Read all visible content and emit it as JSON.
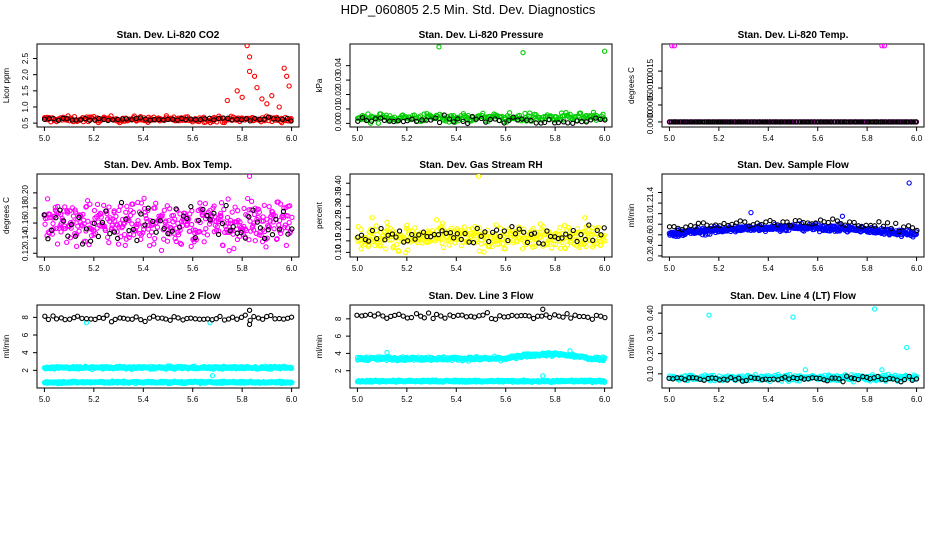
{
  "figure_title": "HDP_060805  2.5 Min. Std. Dev. Diagnostics",
  "chart_data": [
    {
      "id": "co2",
      "type": "scatter",
      "title": "Stan. Dev. Li-820 CO2",
      "ylabel": "Licor ppm",
      "xlim": [
        4.97,
        6.03
      ],
      "ylim": [
        0.38,
        2.95
      ],
      "xticks": [
        "5.0",
        "5.2",
        "5.4",
        "5.6",
        "5.8",
        "6.0"
      ],
      "yticks": [
        "0.5",
        "1.0",
        "1.5",
        "2.0",
        "2.5"
      ],
      "series": [
        {
          "name": "sd_fine",
          "color": "#ff0000",
          "base": 0.62,
          "noise": 0.09,
          "n": 240,
          "events": [
            [
              5.82,
              2.9
            ],
            [
              5.83,
              2.55
            ],
            [
              5.83,
              2.1
            ],
            [
              5.85,
              1.95
            ],
            [
              5.86,
              1.6
            ],
            [
              5.78,
              1.5
            ],
            [
              5.74,
              1.2
            ],
            [
              5.92,
              1.35
            ],
            [
              5.97,
              2.2
            ],
            [
              5.98,
              1.95
            ],
            [
              5.99,
              1.65
            ],
            [
              5.9,
              1.1
            ],
            [
              5.88,
              1.25
            ],
            [
              5.95,
              1.0
            ],
            [
              5.8,
              1.3
            ]
          ]
        },
        {
          "name": "sd_coarse",
          "color": "#000000",
          "base": 0.62,
          "noise": 0.05,
          "n": 55,
          "events": []
        }
      ]
    },
    {
      "id": "pressure",
      "type": "scatter",
      "title": "Stan. Dev. Li-820 Pressure",
      "ylabel": "kPa",
      "xlim": [
        4.97,
        6.03
      ],
      "ylim": [
        -0.0025,
        0.055
      ],
      "xticks": [
        "5.0",
        "5.2",
        "5.4",
        "5.6",
        "5.8",
        "6.0"
      ],
      "yticks": [
        "0.00",
        "0.01",
        "0.02",
        "0.03",
        "0.04"
      ],
      "series": [
        {
          "name": "sd_fine",
          "color": "#00cc00",
          "base": 0.004,
          "noise": 0.003,
          "n": 230,
          "events": [
            [
              5.33,
              0.053
            ],
            [
              5.67,
              0.049
            ],
            [
              6.0,
              0.05
            ]
          ]
        },
        {
          "name": "sd_coarse",
          "color": "#000000",
          "base": 0.002,
          "noise": 0.003,
          "n": 55,
          "events": []
        }
      ]
    },
    {
      "id": "temp",
      "type": "scatter",
      "title": "Stan. Dev. Li-820 Temp.",
      "ylabel": "degrees C",
      "xlim": [
        4.97,
        6.03
      ],
      "ylim": [
        -0.00015,
        0.0023
      ],
      "xticks": [
        "5.0",
        "5.2",
        "5.4",
        "5.6",
        "5.8",
        "6.0"
      ],
      "yticks": [
        "0.0000",
        "0.0005",
        "0.0010",
        "0.0015"
      ],
      "series": [
        {
          "name": "sd_fine",
          "color": "#ff00ff",
          "base": 0.0,
          "noise": 0.0,
          "n": 150,
          "events": [
            [
              5.01,
              0.00225
            ],
            [
              5.02,
              0.00225
            ],
            [
              5.86,
              0.00225
            ],
            [
              5.87,
              0.00225
            ]
          ]
        },
        {
          "name": "sd_coarse",
          "color": "#000000",
          "base": 0.0,
          "noise": 0.0,
          "n": 150,
          "events": []
        }
      ]
    },
    {
      "id": "ambbox",
      "type": "scatter",
      "title": "Stan. Dev. Amb. Box Temp.",
      "ylabel": "degrees C",
      "xlim": [
        4.97,
        6.03
      ],
      "ylim": [
        0.115,
        0.225
      ],
      "xticks": [
        "5.0",
        "5.2",
        "5.4",
        "5.6",
        "5.8",
        "6.0"
      ],
      "yticks": [
        "0.12",
        "0.14",
        "0.16",
        "0.18",
        "0.20"
      ],
      "series": [
        {
          "name": "sd_fine",
          "color": "#ff00ff",
          "base": 0.16,
          "noise": 0.028,
          "n": 420,
          "events": [
            [
              5.83,
              0.222
            ]
          ]
        },
        {
          "name": "sd_coarse",
          "color": "#000000",
          "base": 0.162,
          "noise": 0.025,
          "n": 65,
          "events": []
        }
      ]
    },
    {
      "id": "rh",
      "type": "scatter",
      "title": "Stan. Dev. Gas Stream RH",
      "ylabel": "percent",
      "xlim": [
        4.97,
        6.03
      ],
      "ylim": [
        0.08,
        0.44
      ],
      "xticks": [
        "5.0",
        "5.2",
        "5.4",
        "5.6",
        "5.8",
        "6.0"
      ],
      "yticks": [
        "0.10",
        "0.15",
        "0.20",
        "0.25",
        "0.30",
        "0.35",
        "0.40"
      ],
      "series": [
        {
          "name": "sd_fine",
          "color": "#ffff00",
          "base": 0.165,
          "noise": 0.05,
          "n": 380,
          "events": [
            [
              5.49,
              0.43
            ],
            [
              5.92,
              0.25
            ],
            [
              5.12,
              0.23
            ],
            [
              5.06,
              0.25
            ]
          ]
        },
        {
          "name": "sd_coarse",
          "color": "#000000",
          "base": 0.17,
          "noise": 0.045,
          "n": 65,
          "events": []
        }
      ]
    },
    {
      "id": "sampleflow",
      "type": "scatter",
      "title": "Stan. Dev. Sample Flow",
      "ylabel": "ml/min",
      "xlim": [
        4.97,
        6.03
      ],
      "ylim": [
        0.18,
        1.75
      ],
      "xticks": [
        "5.0",
        "5.2",
        "5.4",
        "5.6",
        "5.8",
        "6.0"
      ],
      "yticks": [
        "0.2",
        "0.4",
        "0.6",
        "0.8",
        "1.0",
        "1.2",
        "1.4"
      ],
      "series": [
        {
          "name": "sd_fine",
          "color": "#0000ff",
          "base": 0.62,
          "noise": 0.06,
          "n": 500,
          "trend": "hump",
          "events": [
            [
              5.97,
              1.58
            ],
            [
              5.7,
              0.95
            ],
            [
              5.33,
              1.02
            ]
          ]
        },
        {
          "name": "sd_coarse",
          "color": "#000000",
          "base": 0.72,
          "noise": 0.07,
          "n": 60,
          "trend": "hump",
          "events": []
        }
      ]
    },
    {
      "id": "line2",
      "type": "scatter",
      "title": "Stan. Dev. Line 2 Flow",
      "ylabel": "ml/min",
      "xlim": [
        4.97,
        6.03
      ],
      "ylim": [
        0.0,
        9.4
      ],
      "xticks": [
        "5.0",
        "5.2",
        "5.4",
        "5.6",
        "5.8",
        "6.0"
      ],
      "yticks": [
        "2",
        "4",
        "6",
        "8"
      ],
      "series": [
        {
          "name": "sd_upper",
          "color": "#00ffff",
          "base": 2.3,
          "noise": 0.15,
          "n": 450,
          "events": [
            [
              5.68,
              1.4
            ],
            [
              5.17,
              7.4
            ],
            [
              5.67,
              7.4
            ]
          ]
        },
        {
          "name": "sd_lower",
          "color": "#00ffff",
          "base": 0.65,
          "noise": 0.12,
          "n": 450,
          "events": []
        },
        {
          "name": "sd_coarse",
          "color": "#000000",
          "base": 7.9,
          "noise": 0.3,
          "n": 60,
          "events": [
            [
              5.83,
              8.8
            ],
            [
              5.83,
              7.2
            ]
          ]
        }
      ]
    },
    {
      "id": "line3",
      "type": "scatter",
      "title": "Stan. Dev. Line 3 Flow",
      "ylabel": "ml/min",
      "xlim": [
        4.97,
        6.03
      ],
      "ylim": [
        0.0,
        9.6
      ],
      "xticks": [
        "5.0",
        "5.2",
        "5.4",
        "5.6",
        "5.8",
        "6.0"
      ],
      "yticks": [
        "2",
        "4",
        "6",
        "8"
      ],
      "series": [
        {
          "name": "sd_upper",
          "color": "#00ffff",
          "base": 3.4,
          "noise": 0.2,
          "n": 450,
          "trend": "rise",
          "events": [
            [
              5.12,
              4.1
            ],
            [
              5.86,
              4.3
            ],
            [
              5.87,
              3.9
            ]
          ]
        },
        {
          "name": "sd_lower",
          "color": "#00ffff",
          "base": 0.8,
          "noise": 0.12,
          "n": 450,
          "events": [
            [
              5.75,
              1.4
            ]
          ]
        },
        {
          "name": "sd_coarse",
          "color": "#000000",
          "base": 8.3,
          "noise": 0.35,
          "n": 60,
          "events": [
            [
              5.75,
              9.1
            ]
          ]
        }
      ]
    },
    {
      "id": "line4",
      "type": "scatter",
      "title": "Stan. Dev. Line 4 (LT) Flow",
      "ylabel": "ml/min",
      "xlim": [
        4.97,
        6.03
      ],
      "ylim": [
        0.03,
        0.44
      ],
      "xticks": [
        "5.0",
        "5.2",
        "5.4",
        "5.6",
        "5.8",
        "6.0"
      ],
      "yticks": [
        "0.10",
        "0.20",
        "0.30",
        "0.40"
      ],
      "series": [
        {
          "name": "sd_fine",
          "color": "#00ffff",
          "base": 0.08,
          "noise": 0.015,
          "n": 350,
          "events": [
            [
              5.16,
              0.39
            ],
            [
              5.5,
              0.38
            ],
            [
              5.83,
              0.42
            ],
            [
              5.96,
              0.23
            ],
            [
              5.55,
              0.12
            ],
            [
              5.86,
              0.12
            ]
          ]
        },
        {
          "name": "sd_coarse",
          "color": "#000000",
          "base": 0.075,
          "noise": 0.012,
          "n": 65,
          "events": []
        }
      ]
    }
  ]
}
